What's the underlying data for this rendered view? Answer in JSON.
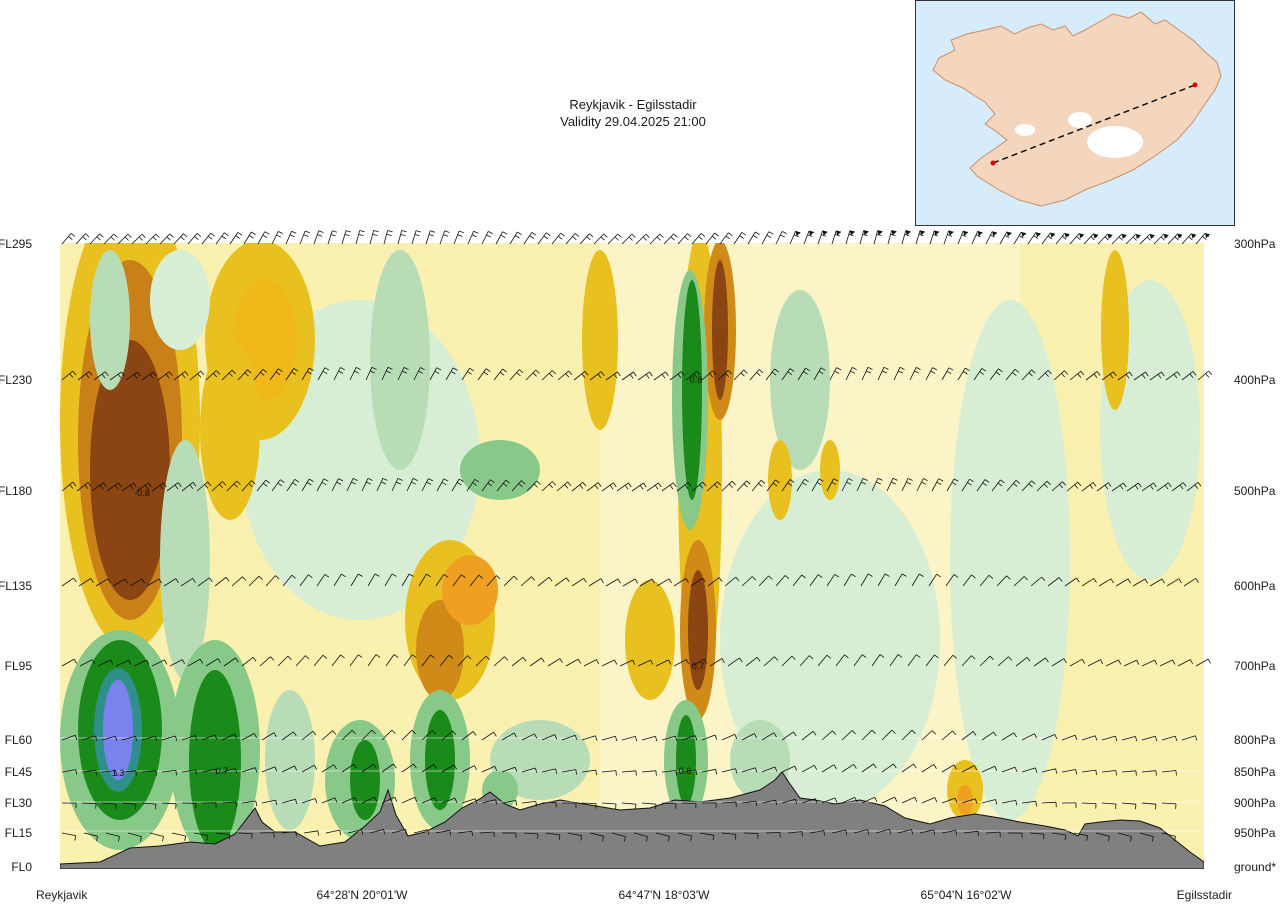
{
  "chart_data": {
    "type": "heatmap",
    "title": "Reykjavik - Egilsstadir",
    "subtitle": "Validity 29.04.2025 21:00",
    "left_axis_ticks": [
      "FL295",
      "FL230",
      "FL180",
      "FL135",
      "FL95",
      "FL60",
      "FL45",
      "FL30",
      "FL15",
      "FL0"
    ],
    "right_axis_ticks": [
      "300hPa",
      "400hPa",
      "500hPa",
      "600hPa",
      "700hPa",
      "800hPa",
      "850hPa",
      "900hPa",
      "950hPa",
      "ground*"
    ],
    "x_labels": [
      "Reykjavik",
      "64°28'N 20°01'W",
      "64°47'N 18°03'W",
      "65°04'N 16°02'W",
      "Egilsstadir"
    ],
    "value_labels": [
      "-0.8",
      "0.8",
      "0.7",
      "1.3",
      "0.7",
      "0.6"
    ],
    "colors": {
      "strong_negative": "#8b4513",
      "negative": "#e8c020",
      "weak": "#faf0b0",
      "positive": "#88c888",
      "strong_positive": "#1a8a1a",
      "extreme_positive": "#7a82ee",
      "terrain": "#808080"
    }
  }
}
